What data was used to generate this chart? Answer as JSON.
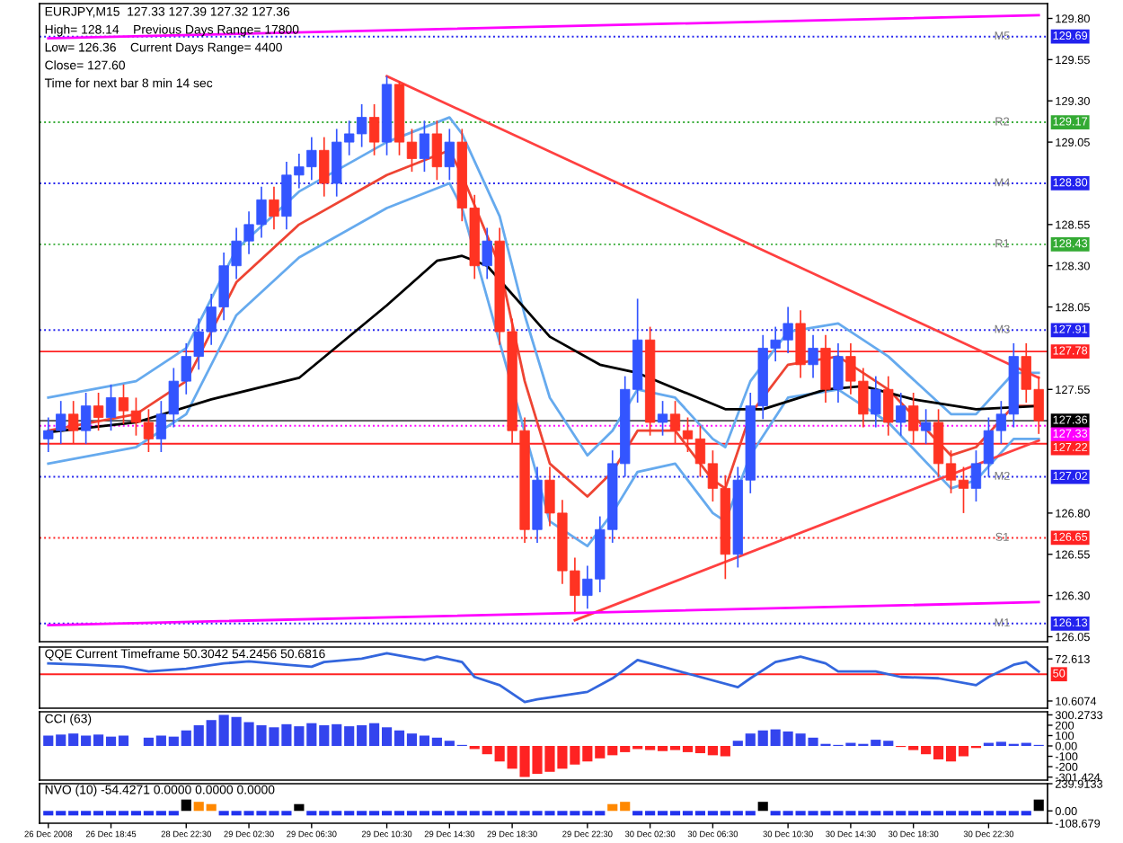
{
  "chart_data": [
    {
      "type": "candlestick",
      "annotations": [
        "EURJPY,M15  127.33 127.39 127.32 127.36",
        "High= 128.14    Previous Days Range= 17800",
        "Low= 126.36    Current Days Range= 4400",
        "Close= 127.60",
        "Time for next bar 8 min 14 sec",
        {
          "text": "M5",
          "y": 129.69
        },
        {
          "text": "R2",
          "y": 129.17
        },
        {
          "text": "M4",
          "y": 128.8
        },
        {
          "text": "R1",
          "y": 128.43
        },
        {
          "text": "M3",
          "y": 127.91
        },
        {
          "text": "M2",
          "y": 127.02
        },
        {
          "text": "S1",
          "y": 126.65
        },
        {
          "text": "M1",
          "y": 126.13
        }
      ],
      "categories": [
        null,
        null,
        null,
        null,
        null,
        null,
        null,
        null,
        null,
        null,
        null,
        null,
        null,
        null,
        null,
        null,
        null,
        null,
        null,
        null,
        null,
        null,
        null,
        null,
        null,
        null,
        null,
        null,
        null,
        null,
        null,
        null,
        null,
        null,
        null,
        null,
        null,
        null,
        null,
        null,
        null,
        null,
        null,
        null,
        null,
        null,
        null,
        null,
        null,
        null,
        null,
        null,
        null,
        null,
        null,
        null,
        null,
        null,
        null,
        null,
        null,
        null,
        null,
        null,
        null,
        null,
        null,
        null,
        null,
        null,
        null,
        null,
        null,
        null,
        null,
        null,
        null,
        null,
        null,
        null
      ],
      "colors": [
        "#3355ff",
        "#3355ff",
        "#ff3322",
        "#3355ff",
        "#ff3322",
        "#3355ff",
        "#ff3322",
        "#ff3322",
        "#ff3322",
        "#3355ff",
        "#3355ff",
        "#3355ff",
        "#3355ff",
        "#3355ff",
        "#3355ff",
        "#3355ff",
        "#3355ff",
        "#3355ff",
        "#ff3322",
        "#3355ff",
        "#3355ff",
        "#3355ff",
        "#ff3322",
        "#3355ff",
        "#3355ff",
        "#3355ff",
        "#ff3322",
        "#3355ff",
        "#ff3322",
        "#ff3322",
        "#3355ff",
        "#ff3322",
        "#3355ff",
        "#ff3322",
        "#ff3322",
        "#3355ff",
        "#ff3322",
        "#ff3322",
        "#ff3322",
        "#3355ff",
        "#ff3322",
        "#ff3322",
        "#ff3322",
        "#3355ff",
        "#3355ff",
        "#3355ff",
        "#3355ff",
        "#3355ff",
        "#ff3322",
        "#3355ff",
        "#ff3322",
        "#ff3322",
        "#ff3322",
        "#ff3322",
        "#ff3322",
        "#3355ff",
        "#3355ff",
        "#3355ff",
        "#3355ff",
        "#3355ff",
        "#ff3322",
        "#3355ff",
        "#ff3322",
        "#3355ff",
        "#ff3322",
        "#ff3322",
        "#3355ff",
        "#ff3322",
        "#3355ff",
        "#ff3322",
        "#3355ff",
        "#ff3322",
        "#ff3322",
        "#ff3322",
        "#3355ff",
        "#3355ff",
        "#3355ff",
        "#3355ff",
        "#ff3322",
        "#ff3322"
      ],
      "ohlc": [
        [
          127.25,
          127.38,
          127.17,
          127.3
        ],
        [
          127.3,
          127.48,
          127.22,
          127.4
        ],
        [
          127.4,
          127.48,
          127.22,
          127.3
        ],
        [
          127.3,
          127.53,
          127.22,
          127.45
        ],
        [
          127.45,
          127.53,
          127.3,
          127.38
        ],
        [
          127.38,
          127.58,
          127.3,
          127.5
        ],
        [
          127.5,
          127.58,
          127.34,
          127.42
        ],
        [
          127.42,
          127.5,
          127.27,
          127.35
        ],
        [
          127.35,
          127.43,
          127.17,
          127.25
        ],
        [
          127.25,
          127.48,
          127.17,
          127.4
        ],
        [
          127.4,
          127.68,
          127.32,
          127.6
        ],
        [
          127.6,
          127.83,
          127.52,
          127.75
        ],
        [
          127.75,
          127.98,
          127.67,
          127.9
        ],
        [
          127.9,
          128.13,
          127.82,
          128.05
        ],
        [
          128.05,
          128.38,
          127.97,
          128.3
        ],
        [
          128.3,
          128.53,
          128.22,
          128.45
        ],
        [
          128.45,
          128.63,
          128.37,
          128.55
        ],
        [
          128.55,
          128.78,
          128.47,
          128.7
        ],
        [
          128.7,
          128.78,
          128.52,
          128.6
        ],
        [
          128.6,
          128.93,
          128.52,
          128.85
        ],
        [
          128.85,
          128.98,
          128.77,
          128.9
        ],
        [
          128.9,
          129.08,
          128.82,
          129.0
        ],
        [
          129.0,
          129.08,
          128.72,
          128.8
        ],
        [
          128.8,
          129.13,
          128.72,
          129.05
        ],
        [
          129.05,
          129.18,
          128.97,
          129.1
        ],
        [
          129.1,
          129.28,
          129.02,
          129.2
        ],
        [
          129.2,
          129.28,
          128.97,
          129.05
        ],
        [
          129.05,
          129.45,
          128.97,
          129.4
        ],
        [
          129.4,
          129.42,
          128.97,
          129.05
        ],
        [
          129.05,
          129.13,
          128.87,
          128.95
        ],
        [
          128.95,
          129.18,
          128.87,
          129.1
        ],
        [
          129.1,
          129.18,
          128.82,
          128.9
        ],
        [
          128.9,
          129.13,
          128.82,
          129.05
        ],
        [
          129.05,
          129.13,
          128.57,
          128.65
        ],
        [
          128.65,
          128.73,
          128.22,
          128.3
        ],
        [
          128.3,
          128.53,
          128.22,
          128.45
        ],
        [
          128.45,
          128.53,
          127.82,
          127.9
        ],
        [
          127.9,
          127.98,
          127.22,
          127.3
        ],
        [
          127.3,
          127.38,
          126.62,
          126.7
        ],
        [
          126.7,
          127.08,
          126.62,
          127.0
        ],
        [
          127.0,
          127.08,
          126.72,
          126.8
        ],
        [
          126.8,
          126.88,
          126.37,
          126.45
        ],
        [
          126.45,
          126.53,
          126.2,
          126.3
        ],
        [
          126.3,
          126.48,
          126.22,
          126.4
        ],
        [
          126.4,
          126.78,
          126.32,
          126.7
        ],
        [
          126.7,
          127.18,
          126.62,
          127.1
        ],
        [
          127.1,
          127.63,
          127.02,
          127.55
        ],
        [
          127.55,
          128.1,
          127.47,
          127.85
        ],
        [
          127.85,
          127.93,
          127.27,
          127.35
        ],
        [
          127.35,
          127.48,
          127.27,
          127.4
        ],
        [
          127.4,
          127.48,
          127.22,
          127.3
        ],
        [
          127.3,
          127.38,
          127.17,
          127.25
        ],
        [
          127.25,
          127.33,
          127.02,
          127.1
        ],
        [
          127.1,
          127.18,
          126.87,
          126.95
        ],
        [
          126.95,
          127.03,
          126.4,
          126.55
        ],
        [
          126.55,
          127.08,
          126.47,
          127.0
        ],
        [
          127.0,
          127.53,
          126.92,
          127.45
        ],
        [
          127.45,
          127.88,
          127.37,
          127.8
        ],
        [
          127.8,
          127.93,
          127.72,
          127.85
        ],
        [
          127.85,
          128.05,
          127.77,
          127.95
        ],
        [
          127.95,
          128.03,
          127.62,
          127.7
        ],
        [
          127.7,
          127.88,
          127.62,
          127.8
        ],
        [
          127.8,
          127.88,
          127.47,
          127.55
        ],
        [
          127.55,
          127.83,
          127.47,
          127.75
        ],
        [
          127.75,
          127.83,
          127.52,
          127.6
        ],
        [
          127.6,
          127.68,
          127.32,
          127.4
        ],
        [
          127.4,
          127.63,
          127.32,
          127.55
        ],
        [
          127.55,
          127.63,
          127.27,
          127.35
        ],
        [
          127.35,
          127.53,
          127.27,
          127.45
        ],
        [
          127.45,
          127.53,
          127.22,
          127.3
        ],
        [
          127.3,
          127.43,
          127.22,
          127.35
        ],
        [
          127.35,
          127.43,
          127.02,
          127.1
        ],
        [
          127.1,
          127.18,
          126.92,
          127.0
        ],
        [
          127.0,
          127.08,
          126.8,
          126.95
        ],
        [
          126.95,
          127.18,
          126.87,
          127.1
        ],
        [
          127.1,
          127.38,
          127.02,
          127.3
        ],
        [
          127.3,
          127.48,
          127.22,
          127.4
        ],
        [
          127.4,
          127.83,
          127.32,
          127.75
        ],
        [
          127.75,
          127.83,
          127.47,
          127.55
        ],
        [
          127.55,
          127.63,
          127.28,
          127.36
        ]
      ],
      "series": [
        {
          "type": "line",
          "color": "#66aaee",
          "values": [
            127.5,
            null,
            null,
            null,
            null,
            null,
            null,
            127.6,
            null,
            null,
            null,
            127.8,
            null,
            null,
            null,
            128.4,
            null,
            null,
            null,
            null,
            128.75,
            null,
            null,
            null,
            null,
            null,
            null,
            129.05,
            null,
            null,
            null,
            null,
            129.2,
            129.1,
            null,
            null,
            128.6,
            null,
            128.0,
            null,
            127.5,
            null,
            null,
            127.15,
            null,
            127.3,
            null,
            127.55,
            null,
            null,
            127.5,
            null,
            null,
            127.25,
            127.2,
            null,
            127.6,
            null,
            null,
            127.9,
            null,
            null,
            null,
            127.95,
            null,
            null,
            null,
            127.75,
            null,
            null,
            null,
            null,
            127.4,
            null,
            127.4,
            null,
            null,
            127.65,
            null,
            127.65
          ]
        },
        {
          "type": "line",
          "color": "#66aaee",
          "values": [
            127.1,
            null,
            null,
            null,
            null,
            null,
            null,
            127.2,
            null,
            null,
            null,
            127.4,
            null,
            null,
            null,
            128.0,
            null,
            null,
            null,
            null,
            128.35,
            null,
            null,
            null,
            null,
            null,
            null,
            128.65,
            null,
            null,
            null,
            null,
            128.8,
            128.65,
            null,
            null,
            null,
            null,
            null,
            null,
            126.75,
            null,
            null,
            126.6,
            null,
            126.8,
            null,
            127.05,
            null,
            null,
            127.1,
            null,
            null,
            126.8,
            126.75,
            null,
            127.15,
            null,
            null,
            127.5,
            null,
            null,
            null,
            127.55,
            null,
            null,
            null,
            127.35,
            null,
            null,
            null,
            null,
            126.95,
            null,
            127.0,
            null,
            null,
            127.25,
            null,
            127.25
          ]
        },
        {
          "type": "line",
          "color": "#ee4433",
          "values": [
            127.3,
            null,
            null,
            null,
            null,
            null,
            null,
            127.4,
            null,
            null,
            null,
            127.6,
            null,
            null,
            null,
            128.2,
            null,
            null,
            null,
            null,
            128.55,
            null,
            null,
            null,
            null,
            null,
            null,
            128.85,
            null,
            null,
            null,
            null,
            129.0,
            128.85,
            null,
            null,
            128.3,
            null,
            127.6,
            null,
            127.1,
            null,
            null,
            126.9,
            null,
            127.05,
            null,
            127.3,
            null,
            null,
            127.3,
            null,
            null,
            127.0,
            126.95,
            null,
            127.4,
            null,
            null,
            127.7,
            null,
            null,
            null,
            127.75,
            null,
            null,
            null,
            127.55,
            null,
            null,
            null,
            null,
            127.15,
            null,
            127.2,
            null,
            null,
            127.45,
            null,
            127.45
          ]
        },
        {
          "type": "line",
          "color": "#000000",
          "values": [
            127.29,
            null,
            null,
            null,
            null,
            null,
            null,
            127.35,
            null,
            null,
            null,
            null,
            null,
            127.49,
            null,
            null,
            null,
            null,
            null,
            null,
            127.62,
            null,
            null,
            null,
            null,
            null,
            null,
            128.06,
            null,
            null,
            null,
            128.33,
            null,
            128.36,
            null,
            128.3,
            null,
            null,
            null,
            null,
            127.87,
            null,
            null,
            null,
            127.7,
            null,
            null,
            127.65,
            null,
            null,
            null,
            null,
            null,
            null,
            127.43,
            null,
            null,
            127.43,
            null,
            null,
            null,
            null,
            127.55,
            null,
            null,
            127.57,
            null,
            null,
            null,
            127.49,
            null,
            null,
            null,
            null,
            127.43,
            null,
            null,
            null,
            null,
            127.45
          ]
        },
        {
          "type": "line",
          "color": "#ff4040",
          "values": [
            null,
            null,
            null,
            null,
            null,
            null,
            null,
            null,
            null,
            null,
            null,
            null,
            null,
            null,
            null,
            null,
            null,
            null,
            null,
            null,
            null,
            null,
            null,
            null,
            null,
            null,
            null,
            129.45,
            null,
            null,
            null,
            null,
            null,
            null,
            null,
            null,
            null,
            null,
            null,
            null,
            null,
            null,
            null,
            null,
            null,
            null,
            null,
            null,
            null,
            null,
            null,
            null,
            null,
            null,
            null,
            null,
            null,
            null,
            null,
            null,
            null,
            null,
            null,
            null,
            null,
            null,
            null,
            null,
            null,
            null,
            null,
            null,
            null,
            null,
            null,
            null,
            null,
            null,
            null,
            127.62
          ]
        },
        {
          "type": "line",
          "color": "#ff4040",
          "values": [
            null,
            null,
            null,
            null,
            null,
            null,
            null,
            null,
            null,
            null,
            null,
            null,
            null,
            null,
            null,
            null,
            null,
            null,
            null,
            null,
            null,
            null,
            null,
            null,
            null,
            null,
            null,
            null,
            null,
            null,
            null,
            null,
            null,
            null,
            null,
            null,
            null,
            null,
            null,
            null,
            null,
            null,
            126.15,
            null,
            null,
            null,
            null,
            null,
            null,
            null,
            null,
            null,
            null,
            null,
            null,
            null,
            null,
            null,
            null,
            null,
            null,
            null,
            null,
            null,
            null,
            null,
            null,
            null,
            null,
            null,
            null,
            null,
            null,
            null,
            null,
            null,
            null,
            null,
            null,
            127.24
          ]
        },
        {
          "type": "line",
          "color": "#ff00ff",
          "values": [
            129.68,
            null,
            null,
            null,
            null,
            null,
            null,
            null,
            null,
            null,
            null,
            null,
            null,
            null,
            null,
            null,
            null,
            null,
            null,
            null,
            null,
            null,
            null,
            null,
            null,
            null,
            null,
            null,
            null,
            null,
            null,
            null,
            null,
            null,
            null,
            null,
            null,
            null,
            null,
            null,
            null,
            null,
            null,
            null,
            null,
            null,
            null,
            null,
            null,
            null,
            null,
            null,
            null,
            null,
            null,
            null,
            null,
            null,
            null,
            null,
            null,
            null,
            null,
            null,
            null,
            null,
            null,
            null,
            null,
            null,
            null,
            null,
            null,
            null,
            null,
            null,
            null,
            null,
            null,
            129.82
          ]
        },
        {
          "type": "line",
          "color": "#ff00ff",
          "values": [
            126.12,
            null,
            null,
            null,
            null,
            null,
            null,
            null,
            null,
            null,
            null,
            null,
            null,
            null,
            null,
            null,
            null,
            null,
            null,
            null,
            null,
            null,
            null,
            null,
            null,
            null,
            null,
            null,
            null,
            null,
            null,
            null,
            null,
            null,
            null,
            null,
            null,
            null,
            null,
            null,
            null,
            null,
            null,
            null,
            null,
            null,
            null,
            null,
            null,
            null,
            null,
            null,
            null,
            null,
            null,
            null,
            null,
            null,
            null,
            null,
            null,
            null,
            null,
            null,
            null,
            null,
            null,
            null,
            null,
            null,
            null,
            null,
            null,
            null,
            null,
            null,
            null,
            null,
            null,
            126.26
          ]
        }
      ],
      "ref_lines": [
        {
          "axis": "y",
          "value": 129.69,
          "label": "129.69",
          "color": "#2222ee",
          "line_style": "dotted"
        },
        {
          "axis": "y",
          "value": 129.17,
          "label": "129.17",
          "color": "#33aa33",
          "line_style": "dotted"
        },
        {
          "axis": "y",
          "value": 128.8,
          "label": "128.80",
          "color": "#2222ee",
          "line_style": "dotted"
        },
        {
          "axis": "y",
          "value": 128.43,
          "label": "128.43",
          "color": "#33aa33",
          "line_style": "dotted"
        },
        {
          "axis": "y",
          "value": 127.91,
          "label": "127.91",
          "color": "#2222ee",
          "line_style": "dotted"
        },
        {
          "axis": "y",
          "value": 127.78,
          "label": "127.78",
          "color": "#ff2222",
          "line_style": "solid"
        },
        {
          "axis": "y",
          "value": 127.36,
          "label": "127.36",
          "color": "#000000",
          "line_style": "solid"
        },
        {
          "axis": "y",
          "value": 127.33,
          "label": "127.33",
          "color": "#ff00ff",
          "line_style": "dotted"
        },
        {
          "axis": "y",
          "value": 127.22,
          "label": "127.22",
          "color": "#ff2222",
          "line_style": "solid"
        },
        {
          "axis": "y",
          "value": 127.02,
          "label": "127.02",
          "color": "#2222ee",
          "line_style": "dotted"
        },
        {
          "axis": "y",
          "value": 126.65,
          "label": "126.65",
          "color": "#ff2222",
          "line_style": "dotted"
        },
        {
          "axis": "y",
          "value": 126.13,
          "label": "126.13",
          "color": "#2222ee",
          "line_style": "dotted"
        }
      ],
      "ylim": [
        126.02,
        129.89
      ],
      "yticks": [
        {
          "value": 129.8,
          "label": "129.80"
        },
        129.55,
        {
          "value": 129.3,
          "label": "129.30"
        },
        129.05,
        128.55,
        {
          "value": 128.3,
          "label": "128.30"
        },
        128.05,
        127.55,
        {
          "value": 126.8,
          "label": "126.80"
        },
        126.55,
        {
          "value": 126.3,
          "label": "126.30"
        },
        126.05
      ],
      "tick_labels": "y",
      "legend": false,
      "grid": false
    },
    {
      "type": "line",
      "title": "QQE Current Timeframe 50.3042 54.2456 50.6816",
      "color": "#3366dd",
      "categories": [
        null,
        null,
        null,
        null,
        null,
        null,
        null,
        null,
        null,
        null,
        null,
        null,
        null,
        null,
        null,
        null,
        null,
        null,
        null,
        null,
        null,
        null,
        null,
        null,
        null,
        null,
        null,
        null,
        null,
        null,
        null,
        null,
        null,
        null,
        null,
        null,
        null,
        null,
        null,
        null,
        null,
        null,
        null,
        null,
        null,
        null,
        null,
        null,
        null,
        null,
        null,
        null,
        null,
        null,
        null,
        null,
        null,
        null,
        null,
        null,
        null,
        null,
        null,
        null,
        null,
        null,
        null,
        null,
        null,
        null,
        null,
        null,
        null,
        null,
        null,
        null,
        null,
        null,
        null,
        null
      ],
      "values": [
        66,
        null,
        null,
        64,
        null,
        null,
        61,
        null,
        54,
        null,
        null,
        58,
        null,
        null,
        66,
        null,
        69,
        null,
        null,
        64,
        null,
        61,
        68,
        null,
        null,
        73,
        null,
        81,
        null,
        null,
        71,
        76,
        null,
        68,
        46,
        null,
        34,
        null,
        9,
        13,
        null,
        null,
        null,
        24,
        null,
        44,
        null,
        71,
        null,
        61,
        null,
        51,
        null,
        null,
        null,
        31,
        44,
        null,
        68,
        null,
        76,
        null,
        66,
        54,
        null,
        null,
        54,
        null,
        46,
        null,
        null,
        44,
        null,
        null,
        34,
        46,
        null,
        64,
        68,
        54
      ],
      "ref_lines": [
        {
          "axis": "y",
          "value": 50,
          "label": "50",
          "color": "#ff2222",
          "line_style": "solid"
        }
      ],
      "ylim": [
        0,
        90
      ],
      "yticks": [
        72.613,
        10.6074
      ],
      "tick_labels": "y",
      "legend": false,
      "grid": false
    },
    {
      "type": "bar",
      "title": "CCI (63)",
      "categories": [
        null,
        null,
        null,
        null,
        null,
        null,
        null,
        null,
        null,
        null,
        null,
        null,
        null,
        null,
        null,
        null,
        null,
        null,
        null,
        null,
        null,
        null,
        null,
        null,
        null,
        null,
        null,
        null,
        null,
        null,
        null,
        null,
        null,
        null,
        null,
        null,
        null,
        null,
        null,
        null,
        null,
        null,
        null,
        null,
        null,
        null,
        null,
        null,
        null,
        null,
        null,
        null,
        null,
        null,
        null,
        null,
        null,
        null,
        null,
        null,
        null,
        null,
        null,
        null,
        null,
        null,
        null,
        null,
        null,
        null,
        null,
        null,
        null,
        null,
        null,
        null,
        null,
        null,
        null,
        null
      ],
      "colors": [
        "#3344ee",
        "#3344ee",
        "#3344ee",
        "#3344ee",
        "#3344ee",
        "#3344ee",
        "#3344ee",
        "#3344ee",
        "#3344ee",
        "#3344ee",
        "#3344ee",
        "#3344ee",
        "#3344ee",
        "#3344ee",
        "#3344ee",
        "#3344ee",
        "#3344ee",
        "#3344ee",
        "#3344ee",
        "#3344ee",
        "#3344ee",
        "#3344ee",
        "#3344ee",
        "#3344ee",
        "#3344ee",
        "#3344ee",
        "#3344ee",
        "#3344ee",
        "#3344ee",
        "#3344ee",
        "#3344ee",
        "#3344ee",
        "#3344ee",
        "#3344ee",
        "#ff2222",
        "#ff2222",
        "#ff2222",
        "#ff2222",
        "#ff2222",
        "#ff2222",
        "#ff2222",
        "#ff2222",
        "#ff2222",
        "#ff2222",
        "#ff2222",
        "#ff2222",
        "#ff2222",
        "#ff2222",
        "#ff2222",
        "#ff2222",
        "#ff2222",
        "#ff2222",
        "#ff2222",
        "#ff2222",
        "#ff2222",
        "#3344ee",
        "#3344ee",
        "#3344ee",
        "#3344ee",
        "#3344ee",
        "#3344ee",
        "#3344ee",
        "#3344ee",
        "#3344ee",
        "#3344ee",
        "#3344ee",
        "#3344ee",
        "#3344ee",
        "#ff2222",
        "#ff2222",
        "#ff2222",
        "#ff2222",
        "#ff2222",
        "#ff2222",
        "#ff2222",
        "#3344ee",
        "#3344ee",
        "#3344ee",
        "#3344ee",
        "#3344ee"
      ],
      "values": [
        100,
        110,
        120,
        100,
        110,
        90,
        100,
        0,
        80,
        100,
        90,
        150,
        200,
        250,
        300,
        280,
        230,
        200,
        180,
        210,
        190,
        220,
        200,
        210,
        190,
        200,
        220,
        180,
        150,
        120,
        100,
        80,
        50,
        10,
        -30,
        -80,
        -150,
        -220,
        -300,
        -270,
        -250,
        -220,
        -180,
        -150,
        -120,
        -90,
        -60,
        -30,
        -40,
        -50,
        -40,
        -60,
        -70,
        -90,
        -100,
        50,
        120,
        150,
        160,
        140,
        120,
        80,
        20,
        10,
        30,
        20,
        60,
        50,
        -10,
        -40,
        -80,
        -130,
        -150,
        -100,
        -20,
        30,
        40,
        20,
        30,
        10
      ],
      "ylim": [
        -330,
        330
      ],
      "yticks": [
        300.2733,
        200,
        100,
        {
          "value": 0,
          "label": "0.00"
        },
        -100,
        -200,
        -301.424
      ],
      "tick_labels": "y",
      "legend": false,
      "grid": false
    },
    {
      "type": "bar",
      "title": "NVO (10) -54.4271 0.0000 0.0000 0.0000",
      "categories": [
        "26 Dec 2008",
        null,
        null,
        null,
        null,
        "26 Dec 18:45",
        null,
        null,
        null,
        null,
        null,
        "28 Dec 22:30",
        null,
        null,
        null,
        null,
        "29 Dec 02:30",
        null,
        null,
        null,
        null,
        "29 Dec 06:30",
        null,
        null,
        null,
        null,
        null,
        "29 Dec 10:30",
        null,
        null,
        null,
        null,
        "29 Dec 14:30",
        null,
        null,
        null,
        null,
        "29 Dec 18:30",
        null,
        null,
        null,
        null,
        null,
        "29 Dec 22:30",
        null,
        null,
        null,
        null,
        "30 Dec 02:30",
        null,
        null,
        null,
        null,
        "30 Dec 06:30",
        null,
        null,
        null,
        null,
        null,
        "30 Dec 10:30",
        null,
        null,
        null,
        null,
        "30 Dec 14:30",
        null,
        null,
        null,
        null,
        "30 Dec 18:30",
        null,
        null,
        null,
        null,
        null,
        "30 Dec 22:30",
        null,
        null,
        null,
        null
      ],
      "colors": [
        "#2233ee",
        "#2233ee",
        "#2233ee",
        "#2233ee",
        "#2233ee",
        "#2233ee",
        "#2233ee",
        "#2233ee",
        "#2233ee",
        "#2233ee",
        "#2233ee",
        "#000000",
        "#ff8800",
        "#ff8800",
        "#2233ee",
        "#2233ee",
        "#2233ee",
        "#2233ee",
        "#2233ee",
        "#2233ee",
        "#000000",
        "#2233ee",
        "#2233ee",
        "#2233ee",
        "#2233ee",
        "#2233ee",
        "#2233ee",
        "#2233ee",
        "#2233ee",
        "#2233ee",
        "#2233ee",
        "#2233ee",
        "#2233ee",
        "#2233ee",
        "#2233ee",
        "#2233ee",
        "#2233ee",
        "#2233ee",
        "#2233ee",
        "#2233ee",
        "#2233ee",
        "#2233ee",
        "#2233ee",
        "#2233ee",
        "#2233ee",
        "#ff8800",
        "#ff8800",
        "#2233ee",
        "#2233ee",
        "#2233ee",
        "#2233ee",
        "#2233ee",
        "#2233ee",
        "#2233ee",
        "#2233ee",
        "#2233ee",
        "#2233ee",
        "#000000",
        "#2233ee",
        "#2233ee",
        "#2233ee",
        "#2233ee",
        "#2233ee",
        "#2233ee",
        "#2233ee",
        "#2233ee",
        "#2233ee",
        "#2233ee",
        "#2233ee",
        "#2233ee",
        "#2233ee",
        "#2233ee",
        "#2233ee",
        "#2233ee",
        "#2233ee",
        "#2233ee",
        "#2233ee",
        "#2233ee",
        "#2233ee",
        "#000000"
      ],
      "values": [
        -40,
        -40,
        -40,
        -40,
        -40,
        -40,
        -40,
        -40,
        -40,
        -40,
        -40,
        100,
        80,
        60,
        -40,
        -40,
        -40,
        -40,
        -40,
        -40,
        60,
        -40,
        -40,
        -40,
        -40,
        -40,
        -40,
        -40,
        -40,
        -40,
        -40,
        -40,
        -40,
        -40,
        -40,
        -40,
        -40,
        -40,
        -40,
        -40,
        -40,
        -40,
        -40,
        -40,
        -40,
        60,
        80,
        -40,
        -40,
        -40,
        -40,
        -40,
        -40,
        -40,
        -40,
        -40,
        -40,
        80,
        -40,
        -40,
        -40,
        -40,
        -40,
        -40,
        -40,
        -40,
        -40,
        -40,
        -40,
        -40,
        -40,
        -40,
        -40,
        -40,
        -40,
        -40,
        -40,
        -40,
        -40,
        100
      ],
      "ylim": [
        -108.679,
        239.9133
      ],
      "yticks": [
        239.9133,
        {
          "value": 0,
          "label": "0.00"
        },
        -108.679
      ],
      "legend": false,
      "grid": false
    }
  ]
}
